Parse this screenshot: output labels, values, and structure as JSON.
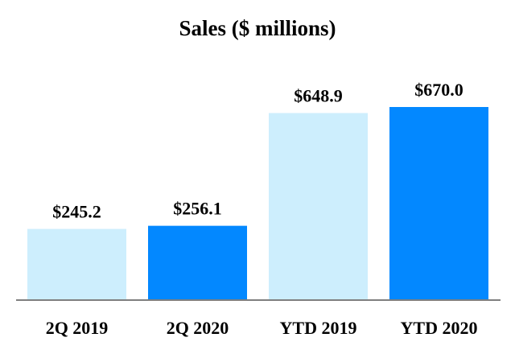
{
  "chart_data": {
    "type": "bar",
    "title": "Sales ($ millions)",
    "categories": [
      "2Q 2019",
      "2Q 2020",
      "YTD 2019",
      "YTD 2020"
    ],
    "values": [
      245.2,
      256.1,
      648.9,
      670.0
    ],
    "data_labels": [
      "$245.2",
      "$256.1",
      "$648.9",
      "$670.0"
    ],
    "bar_colors": [
      "#cdeefd",
      "#0388ff",
      "#cdeefd",
      "#0388ff"
    ],
    "axis_color": "#7f7f7f",
    "xlabel": "",
    "ylabel": "",
    "ylim": [
      0,
      670
    ],
    "grid": false,
    "legend": "none"
  }
}
